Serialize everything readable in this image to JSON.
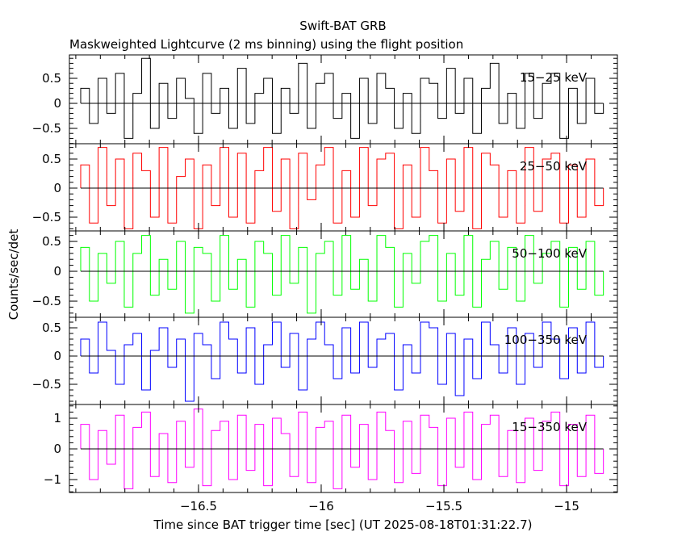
{
  "chart_data": {
    "type": "line",
    "title": "Swift-BAT GRB",
    "subtitle": "Maskweighted Lightcurve (2 ms binning) using the flight position",
    "xlabel": "Time since BAT trigger time [sec] (UT 2025-08-18T01:31:22.7)",
    "ylabel": "Counts/sec/det",
    "xlim": [
      -17.026,
      -14.793
    ],
    "xticks": [
      -16.5,
      -16,
      -15.5,
      -15
    ],
    "xtick_labels": [
      "−16.5",
      "−16",
      "−15.5",
      "−15"
    ],
    "x_start": -16.98,
    "x_step": 0.0355,
    "grid": false,
    "panels": [
      {
        "label": "15−25 keV",
        "color": "#000000",
        "ylim": [
          -0.806,
          0.968
        ],
        "yticks": [
          -0.5,
          0,
          0.5
        ],
        "ytick_labels": [
          "−0.5",
          "0",
          "0.5"
        ],
        "values": [
          0.3,
          -0.4,
          0.5,
          -0.2,
          0.6,
          -0.7,
          0.2,
          0.9,
          -0.5,
          0.4,
          -0.3,
          0.5,
          0.1,
          -0.6,
          0.6,
          -0.2,
          0.3,
          -0.5,
          0.7,
          -0.4,
          0.2,
          0.5,
          -0.6,
          0.3,
          -0.2,
          0.8,
          -0.5,
          0.4,
          0.6,
          -0.3,
          0.2,
          -0.7,
          0.5,
          -0.4,
          0.6,
          0.3,
          -0.5,
          0.2,
          -0.6,
          0.5,
          0.4,
          -0.3,
          0.7,
          -0.2,
          0.5,
          -0.6,
          0.3,
          0.8,
          -0.4,
          0.2,
          -0.5,
          0.6,
          -0.3,
          0.4,
          0.6,
          -0.7,
          0.3,
          -0.4,
          0.5,
          -0.2
        ]
      },
      {
        "label": "25−50 keV",
        "color": "#ff0000",
        "ylim": [
          -0.736,
          0.764
        ],
        "yticks": [
          -0.5,
          0,
          0.5
        ],
        "ytick_labels": [
          "−0.5",
          "0",
          "0.5"
        ],
        "values": [
          0.4,
          -0.6,
          0.7,
          -0.3,
          0.5,
          -0.7,
          0.6,
          0.3,
          -0.5,
          0.7,
          -0.6,
          0.2,
          0.5,
          -0.7,
          0.4,
          -0.3,
          0.7,
          -0.5,
          0.6,
          -0.6,
          0.3,
          0.7,
          -0.4,
          0.5,
          -0.7,
          0.6,
          -0.2,
          0.4,
          0.7,
          -0.6,
          0.3,
          -0.5,
          0.7,
          -0.3,
          0.5,
          0.6,
          -0.7,
          0.4,
          -0.5,
          0.7,
          0.3,
          -0.6,
          0.5,
          -0.4,
          0.7,
          -0.7,
          0.6,
          0.4,
          -0.5,
          0.3,
          -0.6,
          0.7,
          -0.4,
          0.5,
          0.6,
          -0.6,
          0.4,
          -0.5,
          0.5,
          -0.3
        ]
      },
      {
        "label": "50−100 keV",
        "color": "#00ff00",
        "ylim": [
          -0.77,
          0.676
        ],
        "yticks": [
          -0.5,
          0,
          0.5
        ],
        "ytick_labels": [
          "−0.5",
          "0",
          "0.5"
        ],
        "values": [
          0.4,
          -0.5,
          0.3,
          -0.2,
          0.5,
          -0.6,
          0.3,
          0.6,
          -0.4,
          0.2,
          -0.3,
          0.5,
          -0.7,
          0.4,
          0.3,
          -0.5,
          0.6,
          -0.3,
          0.2,
          -0.6,
          0.5,
          0.3,
          -0.4,
          0.6,
          -0.2,
          0.4,
          -0.7,
          0.3,
          0.5,
          -0.4,
          0.6,
          -0.3,
          0.2,
          -0.5,
          0.6,
          0.4,
          -0.6,
          0.3,
          -0.2,
          0.5,
          0.6,
          -0.5,
          0.3,
          -0.4,
          0.6,
          -0.6,
          0.2,
          0.5,
          -0.3,
          0.4,
          -0.5,
          0.6,
          -0.2,
          0.3,
          0.5,
          -0.6,
          0.4,
          -0.3,
          0.5,
          -0.4
        ]
      },
      {
        "label": "100−350 keV",
        "color": "#0000ff",
        "ylim": [
          -0.857,
          0.686
        ],
        "yticks": [
          -0.5,
          0,
          0.5
        ],
        "ytick_labels": [
          "−0.5",
          "0",
          "0.5"
        ],
        "values": [
          0.3,
          -0.3,
          0.6,
          0.1,
          -0.5,
          0.2,
          0.4,
          -0.6,
          0.1,
          0.5,
          -0.2,
          0.3,
          -0.8,
          0.4,
          0.2,
          -0.4,
          0.6,
          0.3,
          -0.3,
          0.5,
          -0.5,
          0.2,
          0.6,
          -0.2,
          0.4,
          -0.6,
          0.3,
          0.6,
          0.2,
          -0.4,
          0.5,
          -0.3,
          0.6,
          -0.2,
          0.3,
          0.4,
          -0.6,
          0.2,
          -0.3,
          0.6,
          0.5,
          -0.5,
          0.4,
          -0.7,
          0.3,
          -0.4,
          0.6,
          0.2,
          -0.3,
          0.5,
          -0.5,
          0.4,
          -0.2,
          0.6,
          0.3,
          -0.4,
          0.5,
          -0.3,
          0.6,
          -0.2
        ]
      },
      {
        "label": "15−350 keV",
        "color": "#ff00ff",
        "ylim": [
          -1.421,
          1.447
        ],
        "yticks": [
          -1,
          0,
          1
        ],
        "ytick_labels": [
          "−1",
          "0",
          "1"
        ],
        "values": [
          0.8,
          -1.0,
          0.6,
          -0.5,
          1.1,
          -1.3,
          0.7,
          1.2,
          -0.9,
          0.5,
          -1.1,
          0.9,
          -0.6,
          1.3,
          -1.2,
          0.6,
          0.9,
          -1.0,
          1.1,
          -0.7,
          0.8,
          -1.2,
          1.0,
          0.5,
          -0.9,
          1.2,
          -1.1,
          0.7,
          0.9,
          -1.3,
          1.1,
          -0.6,
          0.8,
          -1.0,
          1.2,
          0.6,
          -1.1,
          0.9,
          -0.8,
          1.1,
          0.7,
          -1.2,
          1.0,
          -0.6,
          1.2,
          -1.0,
          0.8,
          1.1,
          -0.9,
          0.6,
          -1.1,
          1.0,
          -0.7,
          0.9,
          1.2,
          -1.2,
          0.8,
          -0.9,
          1.1,
          -0.8
        ]
      }
    ]
  }
}
